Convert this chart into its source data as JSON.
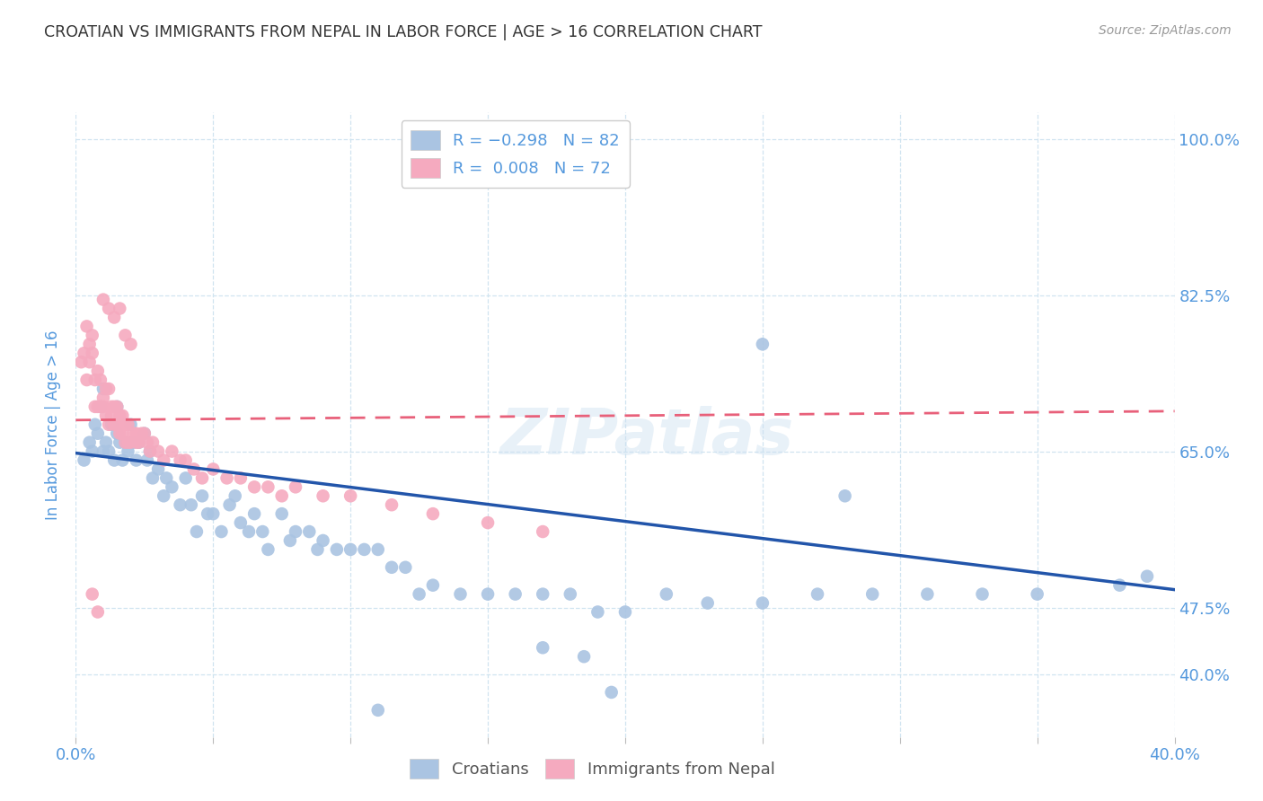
{
  "title": "CROATIAN VS IMMIGRANTS FROM NEPAL IN LABOR FORCE | AGE > 16 CORRELATION CHART",
  "source": "Source: ZipAtlas.com",
  "ylabel": "In Labor Force | Age > 16",
  "blue_R": -0.298,
  "blue_N": 82,
  "pink_R": 0.008,
  "pink_N": 72,
  "blue_color": "#aac4e2",
  "pink_color": "#f5aabf",
  "blue_line_color": "#2255aa",
  "pink_line_color": "#e8607a",
  "title_color": "#333333",
  "axis_label_color": "#5599dd",
  "grid_color": "#d0e4f0",
  "background_color": "#ffffff",
  "xlim": [
    0.0,
    0.4
  ],
  "ylim": [
    0.33,
    1.03
  ],
  "right_yticks": [
    1.0,
    0.825,
    0.65,
    0.475,
    0.4
  ],
  "right_yticklabels": [
    "100.0%",
    "82.5%",
    "65.0%",
    "47.5%",
    "40.0%"
  ],
  "xticks": [
    0.0,
    0.05,
    0.1,
    0.15,
    0.2,
    0.25,
    0.3,
    0.35,
    0.4
  ],
  "legend_label_blue": "Croatians",
  "legend_label_pink": "Immigrants from Nepal",
  "blue_line_x0": 0.0,
  "blue_line_y0": 0.648,
  "blue_line_x1": 0.4,
  "blue_line_y1": 0.495,
  "pink_line_x0": 0.0,
  "pink_line_y0": 0.685,
  "pink_line_x1": 0.4,
  "pink_line_y1": 0.695,
  "blue_scatter_x": [
    0.003,
    0.005,
    0.006,
    0.007,
    0.008,
    0.009,
    0.01,
    0.01,
    0.011,
    0.012,
    0.013,
    0.014,
    0.015,
    0.015,
    0.016,
    0.017,
    0.018,
    0.019,
    0.02,
    0.021,
    0.022,
    0.023,
    0.025,
    0.026,
    0.027,
    0.028,
    0.03,
    0.032,
    0.033,
    0.035,
    0.038,
    0.04,
    0.042,
    0.044,
    0.046,
    0.048,
    0.05,
    0.053,
    0.056,
    0.058,
    0.06,
    0.063,
    0.065,
    0.068,
    0.07,
    0.075,
    0.078,
    0.08,
    0.085,
    0.088,
    0.09,
    0.095,
    0.1,
    0.105,
    0.11,
    0.115,
    0.12,
    0.125,
    0.13,
    0.14,
    0.15,
    0.16,
    0.17,
    0.18,
    0.19,
    0.2,
    0.215,
    0.23,
    0.25,
    0.27,
    0.29,
    0.31,
    0.33,
    0.35,
    0.38,
    0.25,
    0.28,
    0.17,
    0.185,
    0.195,
    0.39,
    0.11
  ],
  "blue_scatter_y": [
    0.64,
    0.66,
    0.65,
    0.68,
    0.67,
    0.7,
    0.65,
    0.72,
    0.66,
    0.65,
    0.68,
    0.64,
    0.67,
    0.7,
    0.66,
    0.64,
    0.66,
    0.65,
    0.68,
    0.66,
    0.64,
    0.66,
    0.67,
    0.64,
    0.65,
    0.62,
    0.63,
    0.6,
    0.62,
    0.61,
    0.59,
    0.62,
    0.59,
    0.56,
    0.6,
    0.58,
    0.58,
    0.56,
    0.59,
    0.6,
    0.57,
    0.56,
    0.58,
    0.56,
    0.54,
    0.58,
    0.55,
    0.56,
    0.56,
    0.54,
    0.55,
    0.54,
    0.54,
    0.54,
    0.54,
    0.52,
    0.52,
    0.49,
    0.5,
    0.49,
    0.49,
    0.49,
    0.49,
    0.49,
    0.47,
    0.47,
    0.49,
    0.48,
    0.48,
    0.49,
    0.49,
    0.49,
    0.49,
    0.49,
    0.5,
    0.77,
    0.6,
    0.43,
    0.42,
    0.38,
    0.51,
    0.36
  ],
  "pink_scatter_x": [
    0.002,
    0.003,
    0.004,
    0.004,
    0.005,
    0.005,
    0.006,
    0.006,
    0.007,
    0.007,
    0.008,
    0.008,
    0.009,
    0.009,
    0.01,
    0.01,
    0.011,
    0.011,
    0.012,
    0.012,
    0.013,
    0.013,
    0.014,
    0.014,
    0.015,
    0.015,
    0.016,
    0.016,
    0.017,
    0.017,
    0.018,
    0.018,
    0.019,
    0.019,
    0.02,
    0.021,
    0.022,
    0.022,
    0.023,
    0.024,
    0.025,
    0.026,
    0.027,
    0.028,
    0.03,
    0.032,
    0.035,
    0.038,
    0.04,
    0.043,
    0.046,
    0.05,
    0.055,
    0.06,
    0.065,
    0.07,
    0.075,
    0.08,
    0.09,
    0.1,
    0.115,
    0.13,
    0.15,
    0.17,
    0.01,
    0.012,
    0.014,
    0.016,
    0.018,
    0.02,
    0.008,
    0.006
  ],
  "pink_scatter_y": [
    0.75,
    0.76,
    0.79,
    0.73,
    0.75,
    0.77,
    0.76,
    0.78,
    0.7,
    0.73,
    0.7,
    0.74,
    0.7,
    0.73,
    0.71,
    0.7,
    0.69,
    0.72,
    0.68,
    0.72,
    0.69,
    0.7,
    0.68,
    0.7,
    0.68,
    0.7,
    0.67,
    0.69,
    0.67,
    0.69,
    0.66,
    0.68,
    0.66,
    0.68,
    0.66,
    0.67,
    0.66,
    0.67,
    0.66,
    0.67,
    0.67,
    0.66,
    0.65,
    0.66,
    0.65,
    0.64,
    0.65,
    0.64,
    0.64,
    0.63,
    0.62,
    0.63,
    0.62,
    0.62,
    0.61,
    0.61,
    0.6,
    0.61,
    0.6,
    0.6,
    0.59,
    0.58,
    0.57,
    0.56,
    0.82,
    0.81,
    0.8,
    0.81,
    0.78,
    0.77,
    0.47,
    0.49
  ]
}
